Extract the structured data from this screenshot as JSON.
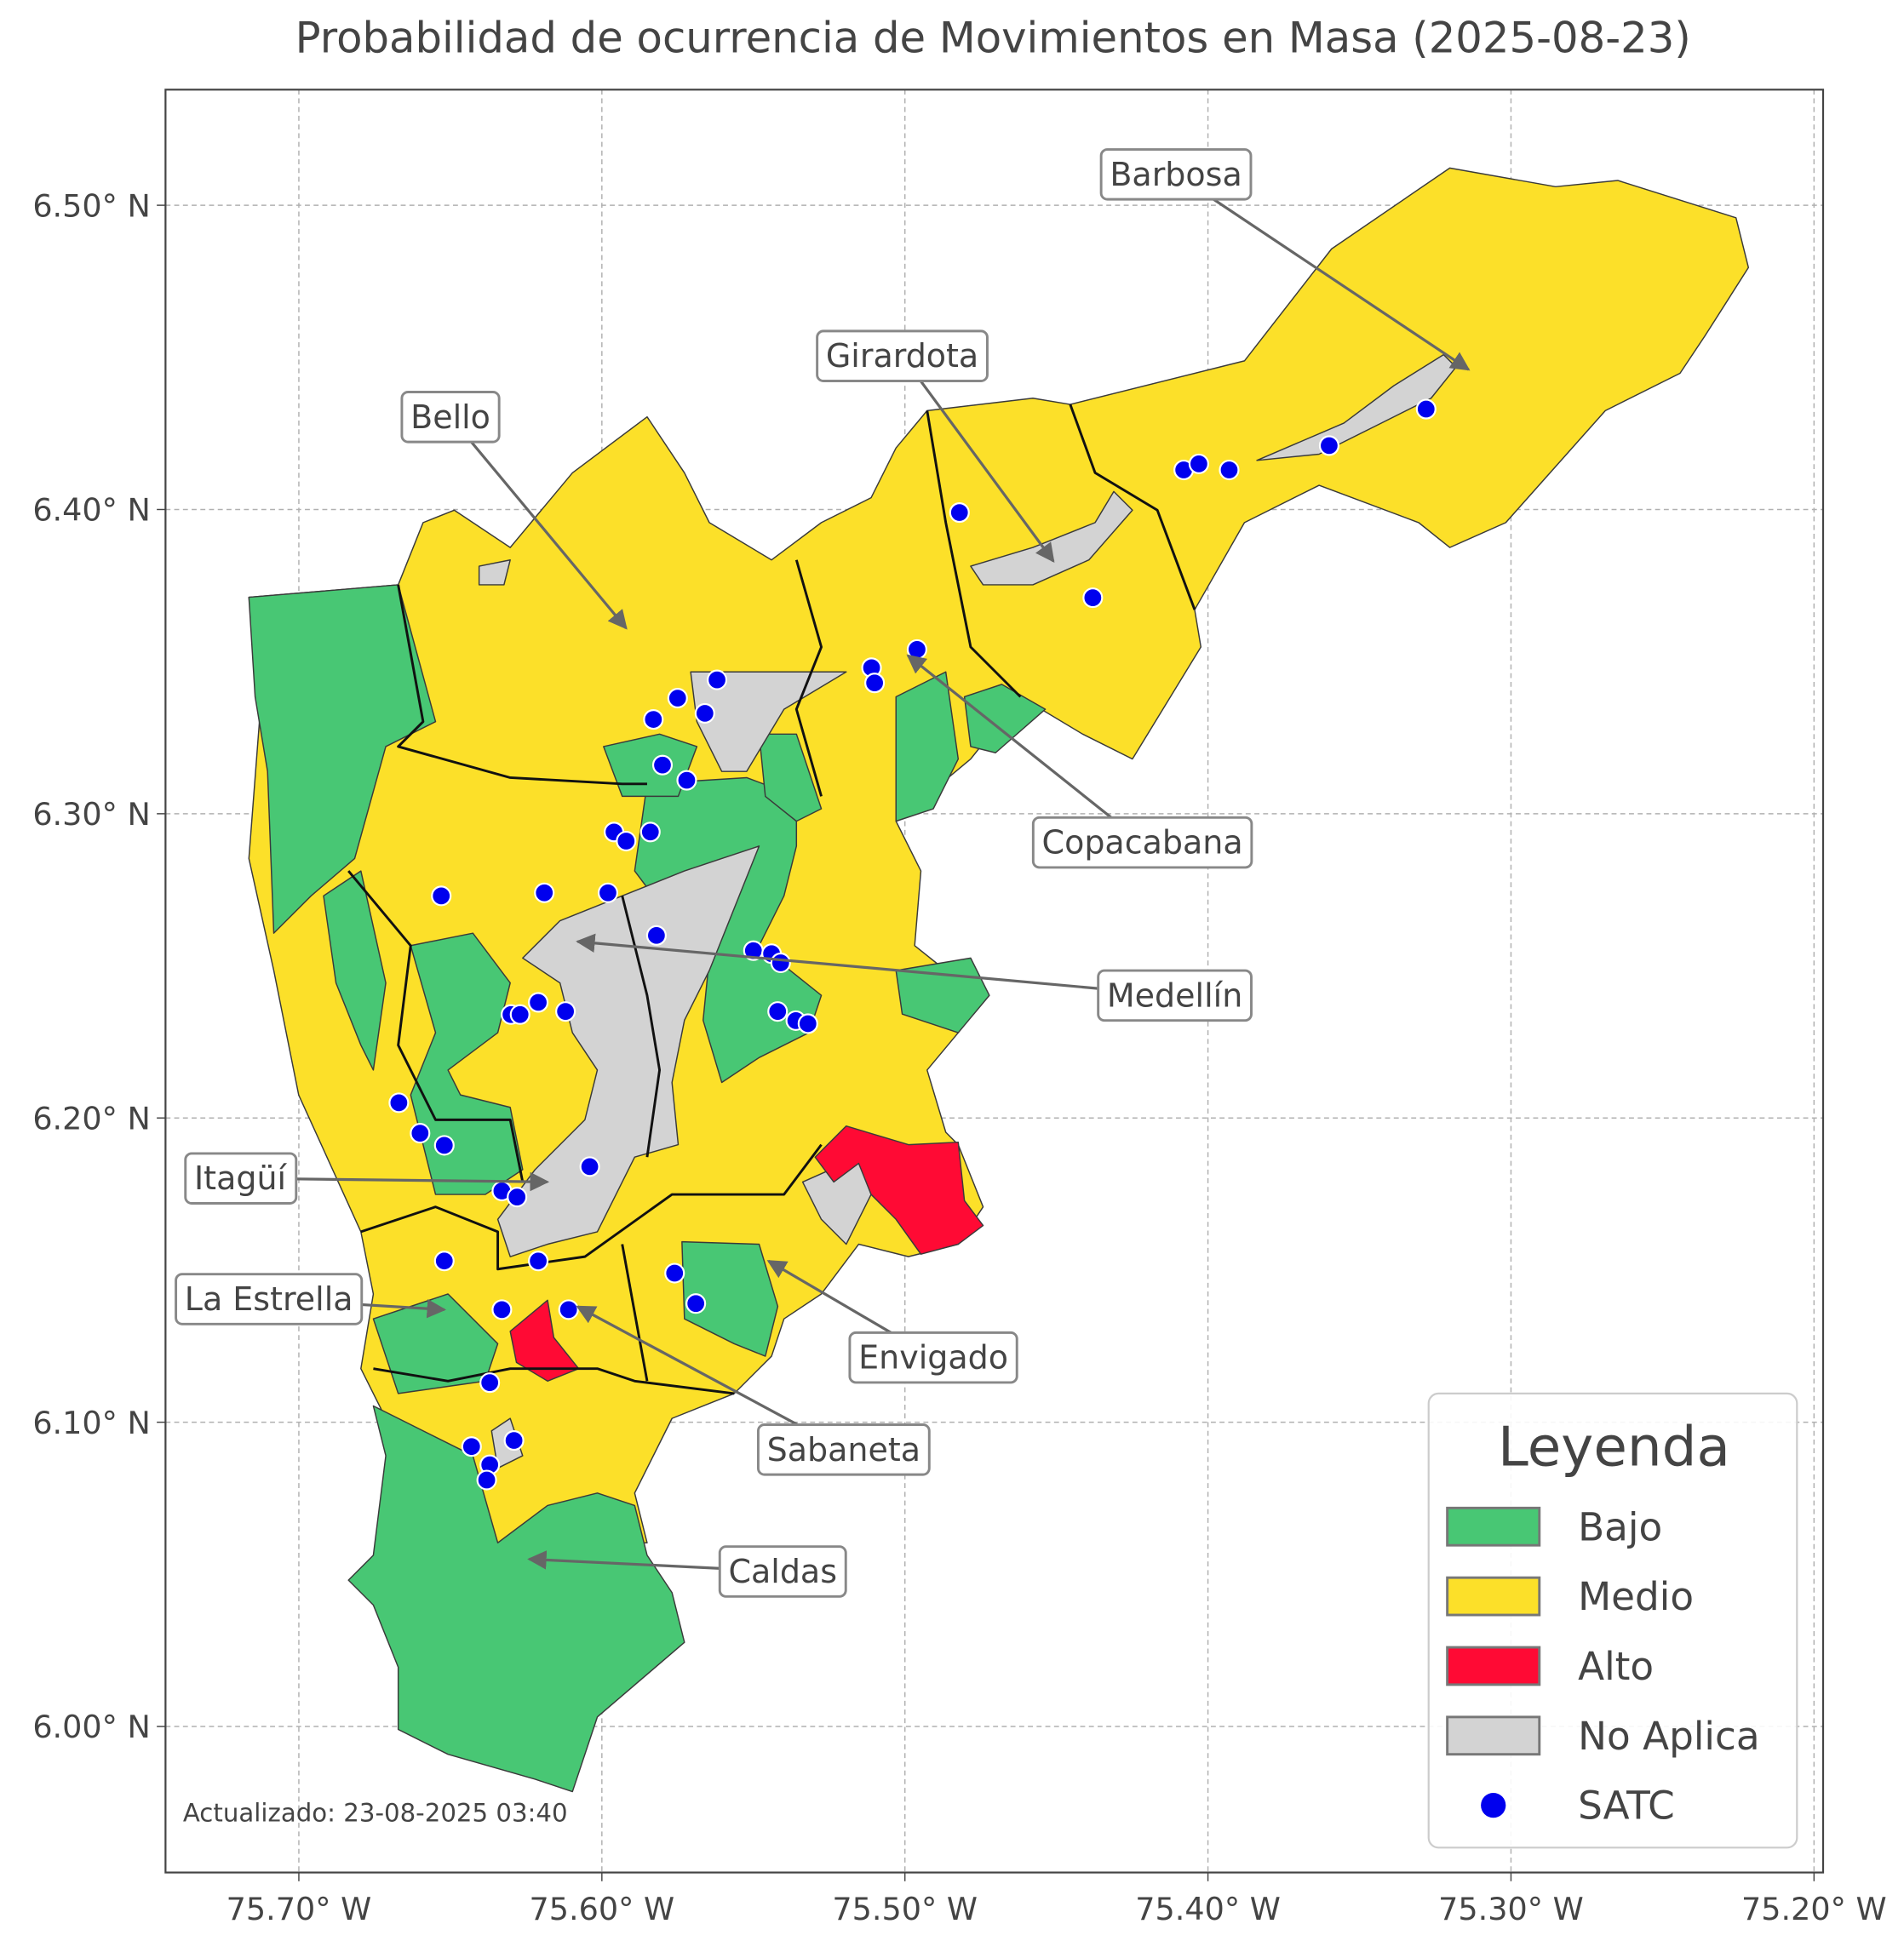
{
  "chart_data": {
    "type": "map",
    "title": "Probabilidad de ocurrencia de Movimientos en Masa (2025-08-23)",
    "xlim": [
      -75.744,
      -75.197
    ],
    "ylim": [
      5.952,
      6.538
    ],
    "xticks": [
      {
        "value": -75.7,
        "label": "75.70° W"
      },
      {
        "value": -75.6,
        "label": "75.60° W"
      },
      {
        "value": -75.5,
        "label": "75.50° W"
      },
      {
        "value": -75.4,
        "label": "75.40° W"
      },
      {
        "value": -75.3,
        "label": "75.30° W"
      },
      {
        "value": -75.2,
        "label": "75.20° W"
      }
    ],
    "yticks": [
      {
        "value": 6.0,
        "label": "6.00° N"
      },
      {
        "value": 6.1,
        "label": "6.10° N"
      },
      {
        "value": 6.2,
        "label": "6.20° N"
      },
      {
        "value": 6.3,
        "label": "6.30° N"
      },
      {
        "value": 6.4,
        "label": "6.40° N"
      },
      {
        "value": 6.5,
        "label": "6.50° N"
      }
    ],
    "grid": true,
    "legend": {
      "title": "Leyenda",
      "position": "lower right",
      "items": [
        {
          "name": "Bajo",
          "color": "#48c774"
        },
        {
          "name": "Medio",
          "color": "#fce029"
        },
        {
          "name": "Alto",
          "color": "#ff0a34"
        },
        {
          "name": "No Aplica",
          "color": "#d3d3d3"
        }
      ]
    },
    "satc": {
      "name": "SATC",
      "color": "#0000ee",
      "lon": [
        -75.328,
        -75.36,
        -75.408,
        -75.403,
        -75.393,
        -75.482,
        -75.438,
        -75.496,
        -75.511,
        -75.51,
        -75.562,
        -75.575,
        -75.583,
        -75.566,
        -75.58,
        -75.572,
        -75.596,
        -75.592,
        -75.584,
        -75.653,
        -75.619,
        -75.598,
        -75.582,
        -75.55,
        -75.544,
        -75.541,
        -75.63,
        -75.627,
        -75.621,
        -75.612,
        -75.542,
        -75.536,
        -75.532,
        -75.667,
        -75.66,
        -75.652,
        -75.604,
        -75.633,
        -75.628,
        -75.621,
        -75.652,
        -75.576,
        -75.569,
        -75.633,
        -75.611,
        -75.637,
        -75.643,
        -75.629,
        -75.637,
        -75.638
      ],
      "lat": [
        6.433,
        6.421,
        6.413,
        6.415,
        6.413,
        6.399,
        6.371,
        6.354,
        6.348,
        6.343,
        6.344,
        6.338,
        6.331,
        6.333,
        6.316,
        6.311,
        6.294,
        6.291,
        6.294,
        6.273,
        6.274,
        6.274,
        6.26,
        6.255,
        6.254,
        6.251,
        6.234,
        6.234,
        6.238,
        6.235,
        6.235,
        6.232,
        6.231,
        6.205,
        6.195,
        6.191,
        6.184,
        6.176,
        6.174,
        6.153,
        6.153,
        6.149,
        6.139,
        6.137,
        6.137,
        6.113,
        6.092,
        6.094,
        6.086,
        6.081
      ]
    },
    "annotations": [
      {
        "text": "Barbosa",
        "point": [
          -75.314,
          6.446
        ]
      },
      {
        "text": "Girardota",
        "point": [
          -75.451,
          6.383
        ]
      },
      {
        "text": "Bello",
        "point": [
          -75.592,
          6.361
        ]
      },
      {
        "text": "Copacabana",
        "point": [
          -75.499,
          6.352
        ]
      },
      {
        "text": "Medellín",
        "point": [
          -75.608,
          6.258
        ]
      },
      {
        "text": "Itagüí",
        "point": [
          -75.618,
          6.179
        ]
      },
      {
        "text": "La Estrella",
        "point": [
          -75.652,
          6.137
        ]
      },
      {
        "text": "Envigado",
        "point": [
          -75.545,
          6.153
        ]
      },
      {
        "text": "Sabaneta",
        "point": [
          -75.608,
          6.138
        ]
      },
      {
        "text": "Caldas",
        "point": [
          -75.624,
          6.055
        ]
      }
    ],
    "footnote": "Actualizado: 23-08-2025 03:40"
  }
}
